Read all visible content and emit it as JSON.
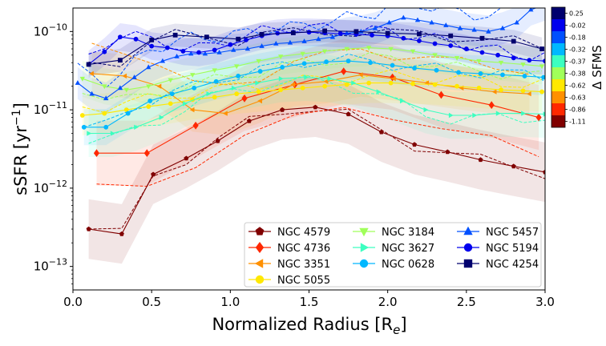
{
  "chart_data": {
    "type": "line",
    "xlabel": "Normalized Radius [R",
    "xlabel_sub": "e",
    "xlabel_end": "]",
    "ylabel": "sSFR [yr",
    "ylabel_sup": "−1",
    "ylabel_end": "]",
    "xlim": [
      0.0,
      3.0
    ],
    "ylim_log10": [
      -13.3,
      -9.7
    ],
    "xticks": [
      {
        "v": 0.0,
        "label": "0.0"
      },
      {
        "v": 0.5,
        "label": "0.5"
      },
      {
        "v": 1.0,
        "label": "1.0"
      },
      {
        "v": 1.5,
        "label": "1.5"
      },
      {
        "v": 2.0,
        "label": "2.0"
      },
      {
        "v": 2.5,
        "label": "2.5"
      },
      {
        "v": 3.0,
        "label": "3.0"
      }
    ],
    "yticks": [
      {
        "exp": -13,
        "base": "10",
        "sup": "−13"
      },
      {
        "exp": -12,
        "base": "10",
        "sup": "−12"
      },
      {
        "exp": -11,
        "base": "10",
        "sup": "−11"
      },
      {
        "exp": -10,
        "base": "10",
        "sup": "−10"
      }
    ],
    "colorbar": {
      "label": "Δ SFMS",
      "ticks": [
        "0.25",
        "-0.02",
        "-0.18",
        "-0.32",
        "-0.37",
        "-0.38",
        "-0.62",
        "-0.63",
        "-0.86",
        "-1.11"
      ],
      "colors": [
        "#00006e",
        "#0000ee",
        "#0050ff",
        "#00b8ff",
        "#3cffc0",
        "#a0ff5a",
        "#ffe800",
        "#ff9000",
        "#ff2800",
        "#800000"
      ]
    },
    "legend_position": "lower-right",
    "series": [
      {
        "name": "NGC 4579",
        "color": "#800000",
        "marker": "pentagon",
        "x": [
          0.1,
          0.31,
          0.51,
          0.72,
          0.92,
          1.12,
          1.33,
          1.54,
          1.75,
          1.96,
          2.17,
          2.38,
          2.59,
          2.8,
          3.0
        ],
        "y": [
          3e-13,
          2.6e-13,
          1.5e-12,
          2.4e-12,
          4e-12,
          7.2e-12,
          1e-11,
          1.08e-11,
          8.8e-12,
          5.2e-12,
          3.6e-12,
          2.9e-12,
          2.3e-12,
          1.9e-12,
          1.6e-12
        ]
      },
      {
        "name": "NGC 4736",
        "color": "#ff2800",
        "marker": "diamond",
        "x": [
          0.15,
          0.47,
          0.78,
          1.09,
          1.41,
          1.72,
          2.03,
          2.34,
          2.66,
          2.96
        ],
        "y": [
          2.8e-12,
          2.8e-12,
          6.3e-12,
          1.4e-11,
          2.1e-11,
          3.1e-11,
          2.6e-11,
          1.55e-11,
          1.15e-11,
          8e-12
        ]
      },
      {
        "name": "NGC 3351",
        "color": "#ff9000",
        "marker": "triangle-left",
        "x": [
          0.12,
          0.33,
          0.55,
          0.76,
          0.97,
          1.19,
          1.4,
          1.61,
          1.83,
          2.04,
          2.25,
          2.47,
          2.68,
          2.9
        ],
        "y": [
          2.9e-11,
          2.7e-11,
          2e-11,
          1e-11,
          9e-12,
          1.3e-11,
          2.1e-11,
          2.3e-11,
          2.8e-11,
          2.5e-11,
          2.2e-11,
          1.9e-11,
          1.7e-11,
          1.6e-11
        ]
      },
      {
        "name": "NGC 5055",
        "color": "#ffe800",
        "marker": "circle",
        "x": [
          0.06,
          0.2,
          0.34,
          0.48,
          0.62,
          0.76,
          0.9,
          1.04,
          1.18,
          1.32,
          1.46,
          1.6,
          1.74,
          1.88,
          2.02,
          2.16,
          2.3,
          2.44,
          2.58,
          2.72,
          2.86,
          2.98
        ],
        "y": [
          8.5e-12,
          9e-12,
          1e-11,
          1.1e-11,
          1.2e-11,
          1.35e-11,
          1.45e-11,
          1.6e-11,
          1.7e-11,
          1.8e-11,
          1.9e-11,
          2e-11,
          2.1e-11,
          2.2e-11,
          2.2e-11,
          2.15e-11,
          2.1e-11,
          2e-11,
          1.9e-11,
          1.8e-11,
          1.75e-11,
          1.7e-11
        ]
      },
      {
        "name": "NGC 3184",
        "color": "#a0ff5a",
        "marker": "triangle-down",
        "x": [
          0.06,
          0.2,
          0.34,
          0.48,
          0.62,
          0.76,
          0.9,
          1.04,
          1.18,
          1.32,
          1.46,
          1.6,
          1.74,
          1.88,
          2.02,
          2.16,
          2.3,
          2.44,
          2.58,
          2.72,
          2.86,
          2.98
        ],
        "y": [
          2.5e-11,
          2e-11,
          1.8e-11,
          2e-11,
          2.4e-11,
          2.8e-11,
          3.2e-11,
          3.6e-11,
          4.2e-11,
          4.8e-11,
          5.2e-11,
          5.6e-11,
          6e-11,
          6.2e-11,
          6e-11,
          5.6e-11,
          5e-11,
          4.6e-11,
          4.2e-11,
          4e-11,
          3.8e-11,
          3.6e-11
        ]
      },
      {
        "name": "NGC 3627",
        "color": "#3cffc0",
        "marker": "triangle-right",
        "x": [
          0.1,
          0.25,
          0.4,
          0.56,
          0.71,
          0.86,
          1.02,
          1.17,
          1.32,
          1.48,
          1.63,
          1.78,
          1.94,
          2.09,
          2.24,
          2.4,
          2.55,
          2.7,
          2.86,
          3.0
        ],
        "y": [
          5e-12,
          5e-12,
          6e-12,
          8e-12,
          1.2e-11,
          1.6e-11,
          1.9e-11,
          2.2e-11,
          2.5e-11,
          2.6e-11,
          2.5e-11,
          2.2e-11,
          1.7e-11,
          1.3e-11,
          1e-11,
          8.5e-12,
          8.5e-12,
          9e-12,
          9e-12,
          8.8e-12
        ]
      },
      {
        "name": "NGC 0628",
        "color": "#00b8ff",
        "marker": "circle",
        "x": [
          0.07,
          0.21,
          0.35,
          0.49,
          0.63,
          0.77,
          0.91,
          1.05,
          1.19,
          1.33,
          1.47,
          1.61,
          1.75,
          1.89,
          2.03,
          2.17,
          2.31,
          2.45,
          2.59,
          2.73,
          2.87,
          2.99
        ],
        "y": [
          6e-12,
          6e-12,
          9e-12,
          1.3e-11,
          1.6e-11,
          1.9e-11,
          2.3e-11,
          2.7e-11,
          3.1e-11,
          3.5e-11,
          3.9e-11,
          4.1e-11,
          4.2e-11,
          4e-11,
          3.7e-11,
          3.4e-11,
          3.2e-11,
          3e-11,
          2.9e-11,
          2.8e-11,
          2.7e-11,
          2.6e-11
        ]
      },
      {
        "name": "NGC 5457",
        "color": "#0050ff",
        "marker": "triangle-up",
        "x": [
          0.03,
          0.12,
          0.21,
          0.3,
          0.39,
          0.48,
          0.57,
          0.66,
          0.75,
          0.84,
          0.93,
          1.02,
          1.11,
          1.2,
          1.29,
          1.38,
          1.47,
          1.56,
          1.65,
          1.74,
          1.83,
          1.92,
          2.01,
          2.1,
          2.19,
          2.28,
          2.37,
          2.46,
          2.55,
          2.64,
          2.73,
          2.82,
          2.91,
          3.0
        ],
        "y": [
          2.2e-11,
          1.6e-11,
          1.4e-11,
          1.9e-11,
          2.6e-11,
          3.5e-11,
          4.2e-11,
          4.8e-11,
          5.2e-11,
          5.2e-11,
          5.4e-11,
          5.8e-11,
          6e-11,
          6.5e-11,
          7e-11,
          7.2e-11,
          7.5e-11,
          8e-11,
          8.5e-11,
          9.5e-11,
          1e-10,
          1.1e-10,
          1.3e-10,
          1.5e-10,
          1.4e-10,
          1.3e-10,
          1.2e-10,
          1.1e-10,
          1.05e-10,
          1e-10,
          1.1e-10,
          1.3e-10,
          1.9e-10,
          2.2e-10
        ]
      },
      {
        "name": "NGC 5194",
        "color": "#0000ee",
        "marker": "circle",
        "x": [
          0.1,
          0.2,
          0.3,
          0.4,
          0.5,
          0.6,
          0.7,
          0.8,
          0.9,
          1.0,
          1.1,
          1.2,
          1.3,
          1.4,
          1.5,
          1.6,
          1.7,
          1.8,
          1.9,
          2.0,
          2.1,
          2.2,
          2.3,
          2.4,
          2.5,
          2.6,
          2.7,
          2.8,
          2.9,
          3.0
        ],
        "y": [
          3.8e-11,
          5.5e-11,
          8.5e-11,
          8e-11,
          6.5e-11,
          6.2e-11,
          5.6e-11,
          5.4e-11,
          5.8e-11,
          6.8e-11,
          7.8e-11,
          8.8e-11,
          9.5e-11,
          9.8e-11,
          9.8e-11,
          9.6e-11,
          9.4e-11,
          9.2e-11,
          9e-11,
          8.8e-11,
          8.2e-11,
          7.6e-11,
          7e-11,
          6.6e-11,
          6e-11,
          5.4e-11,
          5e-11,
          4.6e-11,
          4.3e-11,
          4.2e-11
        ]
      },
      {
        "name": "NGC 4254",
        "color": "#00006e",
        "marker": "square",
        "x": [
          0.1,
          0.3,
          0.5,
          0.65,
          0.85,
          1.05,
          1.2,
          1.4,
          1.6,
          1.8,
          2.0,
          2.2,
          2.4,
          2.6,
          2.8,
          2.98
        ],
        "y": [
          3.8e-11,
          4.3e-11,
          7.8e-11,
          9e-11,
          8.5e-11,
          8e-11,
          9.2e-11,
          9.6e-11,
          1.02e-10,
          1e-10,
          9.5e-11,
          9.3e-11,
          8.8e-11,
          8.2e-11,
          7.5e-11,
          6e-11
        ]
      }
    ]
  }
}
